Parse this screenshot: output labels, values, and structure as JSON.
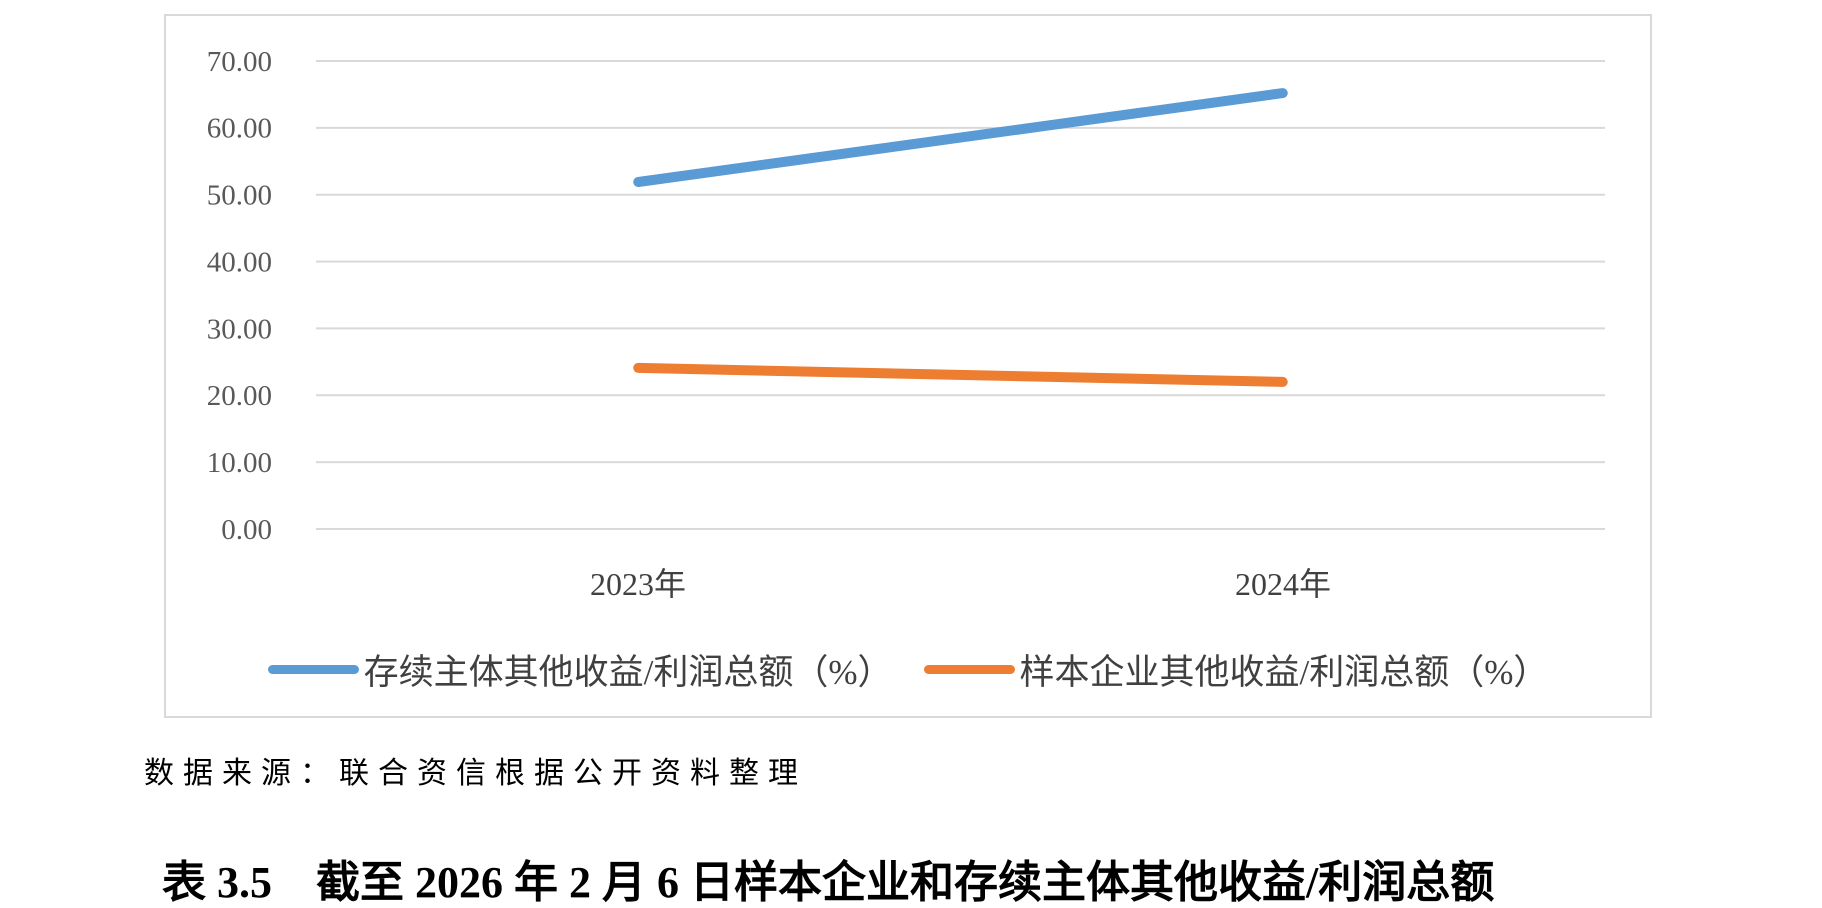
{
  "chart_data": {
    "type": "line",
    "title": "",
    "categories": [
      "2023年",
      "2024年"
    ],
    "series": [
      {
        "name": "存续主体其他收益/利润总额（%）",
        "values": [
          51.9,
          65.2
        ],
        "color": "#5B9BD5"
      },
      {
        "name": "样本企业其他收益/利润总额（%）",
        "values": [
          24.1,
          22.0
        ],
        "color": "#ED7D31"
      }
    ],
    "xlabel": "",
    "ylabel": "",
    "ylim": [
      0,
      70
    ],
    "y_ticks": [
      "70.00",
      "60.00",
      "50.00",
      "40.00",
      "30.00",
      "20.00",
      "10.00",
      "0.00"
    ],
    "grid": "horizontal",
    "gridline_color": "#D9D9D9",
    "tick_label_color": "#595959",
    "legend_position": "bottom-inside"
  },
  "source_note": "数据来源：联合资信根据公开资料整理",
  "caption": "表 3.5　截至 2026 年 2 月 6 日样本企业和存续主体其他收益/利润总额"
}
